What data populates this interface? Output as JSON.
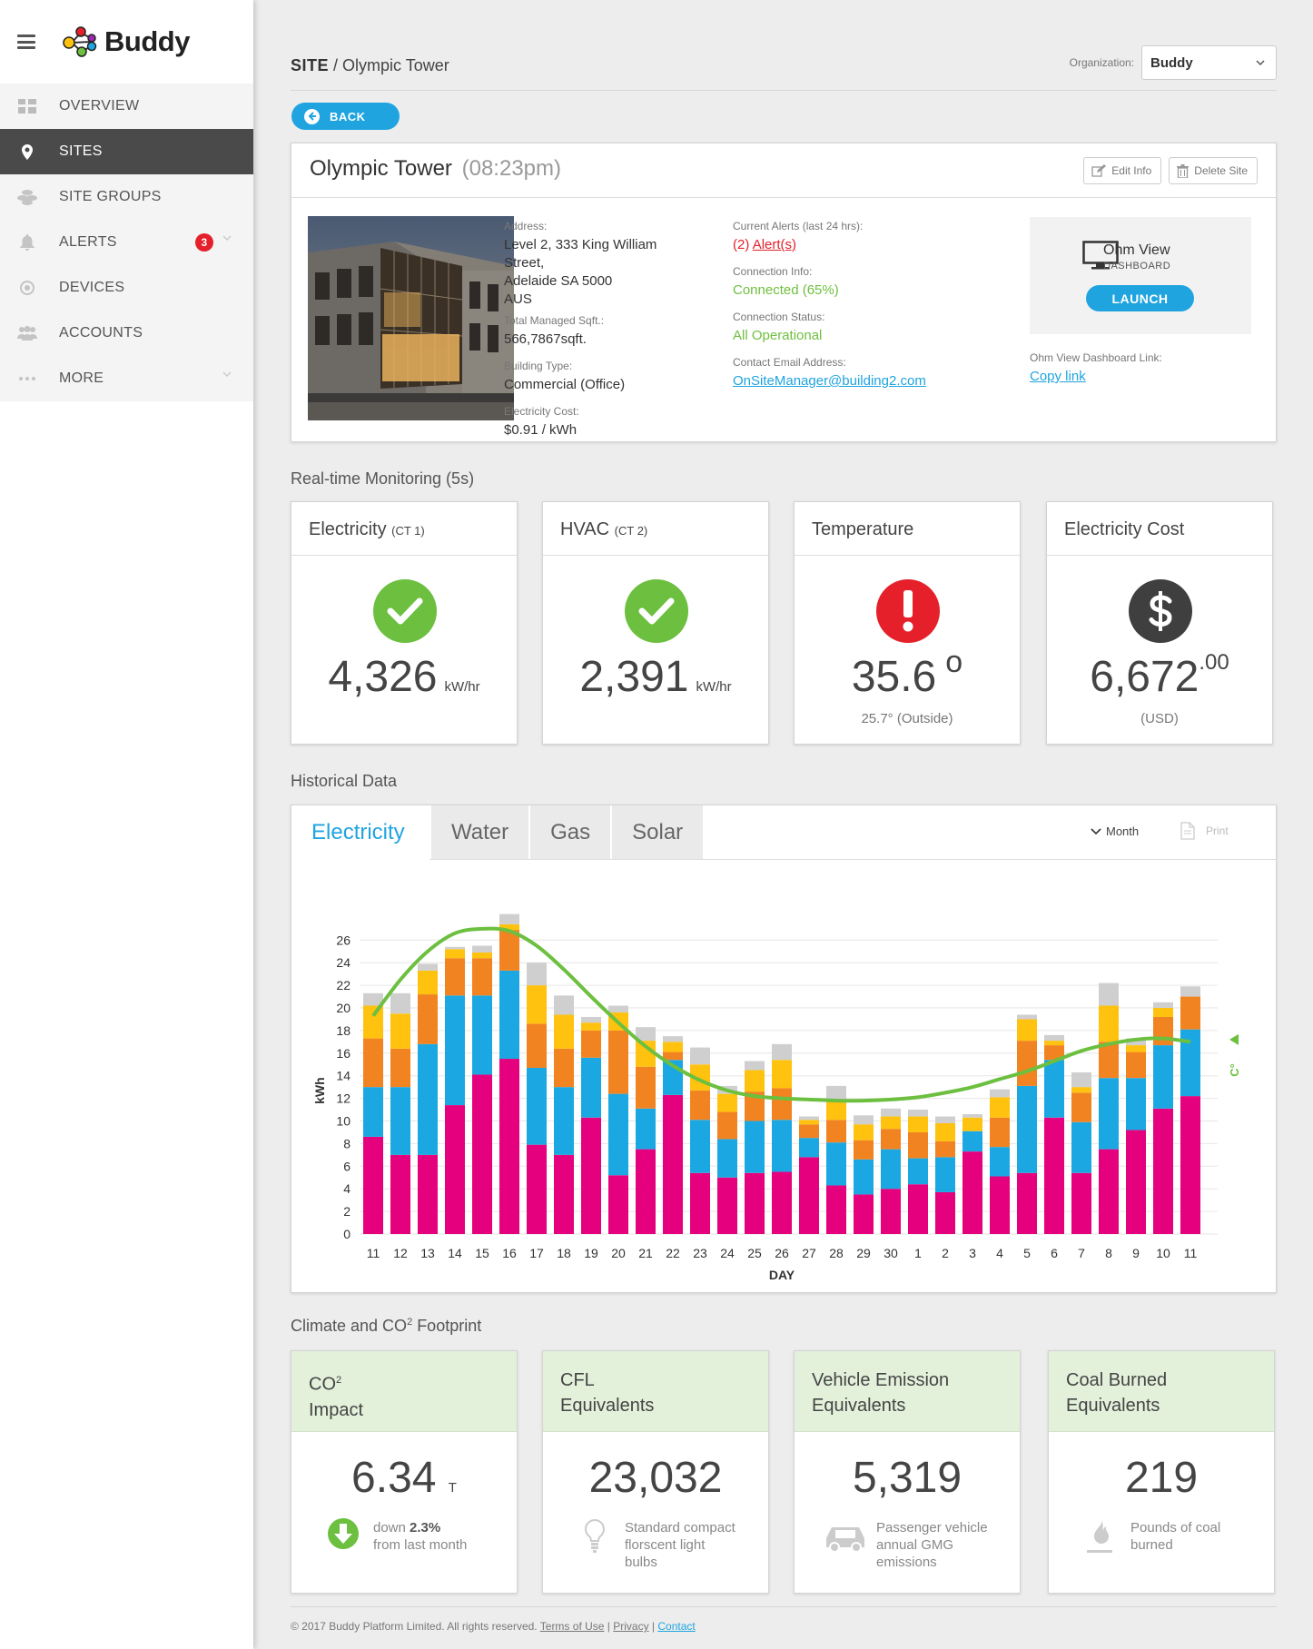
{
  "app": {
    "brand": "Buddy"
  },
  "nav": {
    "items": [
      {
        "label": "OVERVIEW",
        "icon": "grid-icon"
      },
      {
        "label": "SITES",
        "icon": "map-pin-icon"
      },
      {
        "label": "SITE GROUPS",
        "icon": "coins-icon"
      },
      {
        "label": "ALERTS",
        "icon": "bell-icon",
        "badge": "3"
      },
      {
        "label": "DEVICES",
        "icon": "target-icon"
      },
      {
        "label": "ACCOUNTS",
        "icon": "users-icon"
      },
      {
        "label": "MORE",
        "icon": "dots-icon"
      }
    ]
  },
  "breadcrumb": {
    "section": "SITE",
    "separator": " / ",
    "current": "Olympic Tower"
  },
  "org": {
    "label": "Organization:",
    "value": "Buddy"
  },
  "back_label": "BACK",
  "site": {
    "name": "Olympic Tower",
    "time": "(08:23pm)",
    "edit_label": "Edit Info",
    "delete_label": "Delete Site",
    "address_label": "Address:",
    "address_lines": [
      "Level 2, 333 King William Street,",
      "Adelaide SA 5000",
      "AUS"
    ],
    "sqft_label": "Total Managed Sqft.:",
    "sqft": "566,7867sqft.",
    "type_label": "Building Type:",
    "type": "Commercial (Office)",
    "cost_label": "Electricity Cost:",
    "cost": "$0.91 / kWh",
    "alerts_label": "Current Alerts (last 24 hrs):",
    "alerts_count": "(2)",
    "alerts_link": "Alert(s)",
    "conn_info_label": "Connection Info:",
    "conn_info": "Connected (65%)",
    "conn_status_label": "Connection Status:",
    "conn_status": "All Operational",
    "email_label": "Contact Email Address:",
    "email": "OnSiteManager@building2.com",
    "ohm_title": "Ohm View",
    "ohm_sub": "DASHBOARD",
    "launch_label": "LAUNCH",
    "dash_link_label": "Ohm View Dashboard Link:",
    "copy_link": "Copy link"
  },
  "realtime": {
    "title": "Real-time Monitoring (5s)",
    "cards": [
      {
        "title": "Electricity",
        "tag": "(CT 1)",
        "value": "4,326",
        "unit": "kW/hr",
        "status": "ok",
        "icon": "check-icon",
        "color": "#6cbf3f"
      },
      {
        "title": "HVAC",
        "tag": "(CT 2)",
        "value": "2,391",
        "unit": "kW/hr",
        "status": "ok",
        "icon": "check-icon",
        "color": "#6cbf3f"
      },
      {
        "title": "Temperature",
        "value": "35.6",
        "unit": "o",
        "sub": "25.7° (Outside)",
        "status": "alert",
        "icon": "exclamation-icon",
        "color": "#e5202b"
      },
      {
        "title": "Electricity Cost",
        "value": "6,672",
        "unit": ".00",
        "sub": "(USD)",
        "status": "info",
        "icon": "dollar-icon",
        "color": "#3f3f3f"
      }
    ]
  },
  "historical": {
    "title": "Historical Data",
    "tabs": [
      "Electricity",
      "Water",
      "Gas",
      "Solar"
    ],
    "active_tab": "Electricity",
    "period": "Month",
    "print_label": "Print"
  },
  "chart_data": {
    "type": "bar",
    "stacked": true,
    "xlabel": "DAY",
    "ylabel": "kWh",
    "y2label": "C°",
    "ylim": [
      0,
      26
    ],
    "yticks": [
      0,
      2,
      4,
      6,
      8,
      10,
      12,
      14,
      16,
      18,
      20,
      22,
      24,
      26
    ],
    "grid": true,
    "categories": [
      "11",
      "12",
      "13",
      "14",
      "15",
      "16",
      "17",
      "18",
      "19",
      "20",
      "21",
      "22",
      "23",
      "24",
      "25",
      "26",
      "27",
      "28",
      "29",
      "30",
      "1",
      "2",
      "3",
      "4",
      "5",
      "6",
      "7",
      "8",
      "9",
      "10",
      "11"
    ],
    "series": [
      {
        "color": "#e5007e",
        "values": [
          8.6,
          7.0,
          7.0,
          11.4,
          14.1,
          15.5,
          7.9,
          7.0,
          10.3,
          5.2,
          7.5,
          12.3,
          5.4,
          5.0,
          5.4,
          5.5,
          6.8,
          4.3,
          3.5,
          4.0,
          4.4,
          3.7,
          7.3,
          5.1,
          5.4,
          10.3,
          5.4,
          7.5,
          9.2,
          11.1,
          12.2
        ],
        "group": "segment 1"
      },
      {
        "color": "#1ba8e2",
        "values": [
          4.4,
          6.0,
          9.8,
          9.7,
          7.0,
          7.8,
          6.8,
          6.0,
          5.3,
          7.2,
          3.6,
          3.1,
          4.7,
          3.4,
          4.6,
          4.6,
          1.7,
          3.8,
          3.1,
          3.5,
          2.3,
          3.1,
          1.8,
          2.6,
          7.7,
          5.1,
          4.5,
          6.3,
          4.6,
          5.6,
          5.9
        ]
      },
      {
        "color": "#f28321",
        "values": [
          4.3,
          3.4,
          4.4,
          3.3,
          3.3,
          3.6,
          3.9,
          3.4,
          2.4,
          5.6,
          3.7,
          0.7,
          2.6,
          2.4,
          2.6,
          2.8,
          1.2,
          2.0,
          1.7,
          1.8,
          2.3,
          1.4,
          0.0,
          2.6,
          4.0,
          1.3,
          2.6,
          3.2,
          2.3,
          2.5,
          2.9
        ]
      },
      {
        "color": "#ffc20e",
        "values": [
          2.9,
          3.1,
          2.1,
          0.8,
          0.5,
          0.5,
          3.4,
          3.0,
          0.7,
          1.6,
          2.3,
          0.9,
          2.3,
          1.6,
          1.9,
          2.5,
          0.4,
          1.7,
          1.4,
          1.1,
          1.4,
          1.6,
          1.2,
          1.8,
          1.9,
          0.4,
          0.5,
          3.2,
          0.6,
          0.8,
          0.0
        ]
      },
      {
        "color": "#cfcfcf",
        "values": [
          1.1,
          1.8,
          0.6,
          0.2,
          0.6,
          0.9,
          2.0,
          1.7,
          0.5,
          0.6,
          1.2,
          0.5,
          1.5,
          0.7,
          0.8,
          1.4,
          0.3,
          1.3,
          0.8,
          0.7,
          0.6,
          0.6,
          0.3,
          0.7,
          0.4,
          0.5,
          1.3,
          2.0,
          0.6,
          0.5,
          0.9
        ]
      }
    ],
    "line": {
      "color": "#6cbf3f",
      "values": [
        19.3,
        22.5,
        25.0,
        26.6,
        27.0,
        26.8,
        25.5,
        23.4,
        21.0,
        18.7,
        16.6,
        14.9,
        13.6,
        12.7,
        12.2,
        12.0,
        11.9,
        11.8,
        11.8,
        11.9,
        12.1,
        12.5,
        13.0,
        13.7,
        14.4,
        15.3,
        16.2,
        16.8,
        17.2,
        17.3,
        17.0
      ]
    }
  },
  "climate": {
    "title": "Climate and CO",
    "title_sup": "2",
    "title_tail": " Footprint",
    "cards": [
      {
        "title1": "CO",
        "sup": "2",
        "title2": "Impact",
        "value": "6.34",
        "unit": "T",
        "desc_pre": "down ",
        "desc_bold": "2.3%",
        "desc_lines": [
          "from last month"
        ],
        "icon": "arrow-down-icon"
      },
      {
        "title1": "CFL",
        "title2": "Equivalents",
        "value": "23,032",
        "desc_lines": [
          "Standard compact",
          "florscent light",
          "bulbs"
        ],
        "icon": "lightbulb-icon"
      },
      {
        "title1": "Vehicle Emission",
        "title2": "Equivalents",
        "value": "5,319",
        "desc_lines": [
          "Passenger vehicle",
          "annual GMG",
          "emissions"
        ],
        "icon": "car-icon"
      },
      {
        "title1": "Coal Burned",
        "title2": "Equivalents",
        "value": "219",
        "desc_lines": [
          "Pounds of coal",
          "burned"
        ],
        "icon": "flame-icon"
      }
    ]
  },
  "footer": {
    "copyright": "© 2017 Buddy Platform Limited. All rights reserved.",
    "terms": "Terms of Use",
    "privacy": "Privacy",
    "contact": "Contact",
    "sep": " | "
  }
}
